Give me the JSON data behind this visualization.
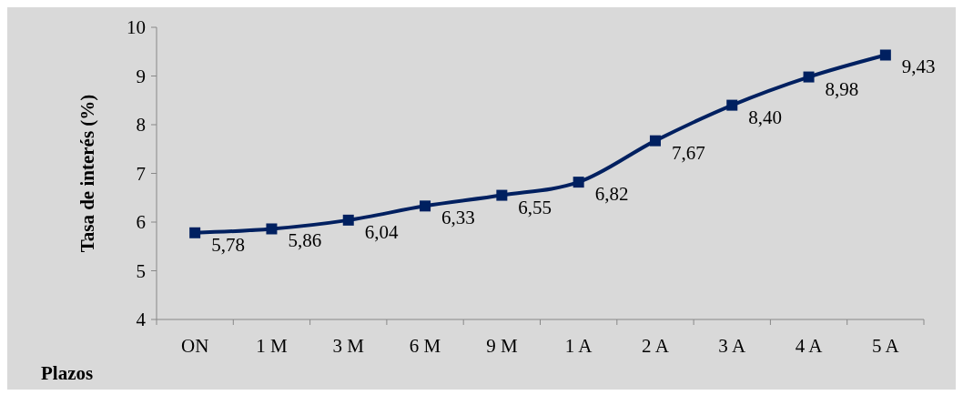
{
  "chart_data": {
    "type": "line",
    "xlabel": "Plazos",
    "ylabel": "Tasa de interés (%)",
    "categories": [
      "ON",
      "1 M",
      "3 M",
      "6 M",
      "9 M",
      "1 A",
      "2 A",
      "3 A",
      "4 A",
      "5 A"
    ],
    "series": [
      {
        "color": "#002060",
        "values": [
          5.78,
          5.86,
          6.04,
          6.33,
          6.55,
          6.82,
          7.67,
          8.4,
          8.98,
          9.43
        ],
        "value_labels": [
          "5,78",
          "5,86",
          "6,04",
          "6,33",
          "6,55",
          "6,82",
          "7,67",
          "8,40",
          "8,98",
          "9,43"
        ]
      }
    ],
    "ylim": [
      4,
      10
    ],
    "yticks": [
      4,
      5,
      6,
      7,
      8,
      9,
      10
    ],
    "marker": "square",
    "line_style": "solid",
    "grid": false
  }
}
